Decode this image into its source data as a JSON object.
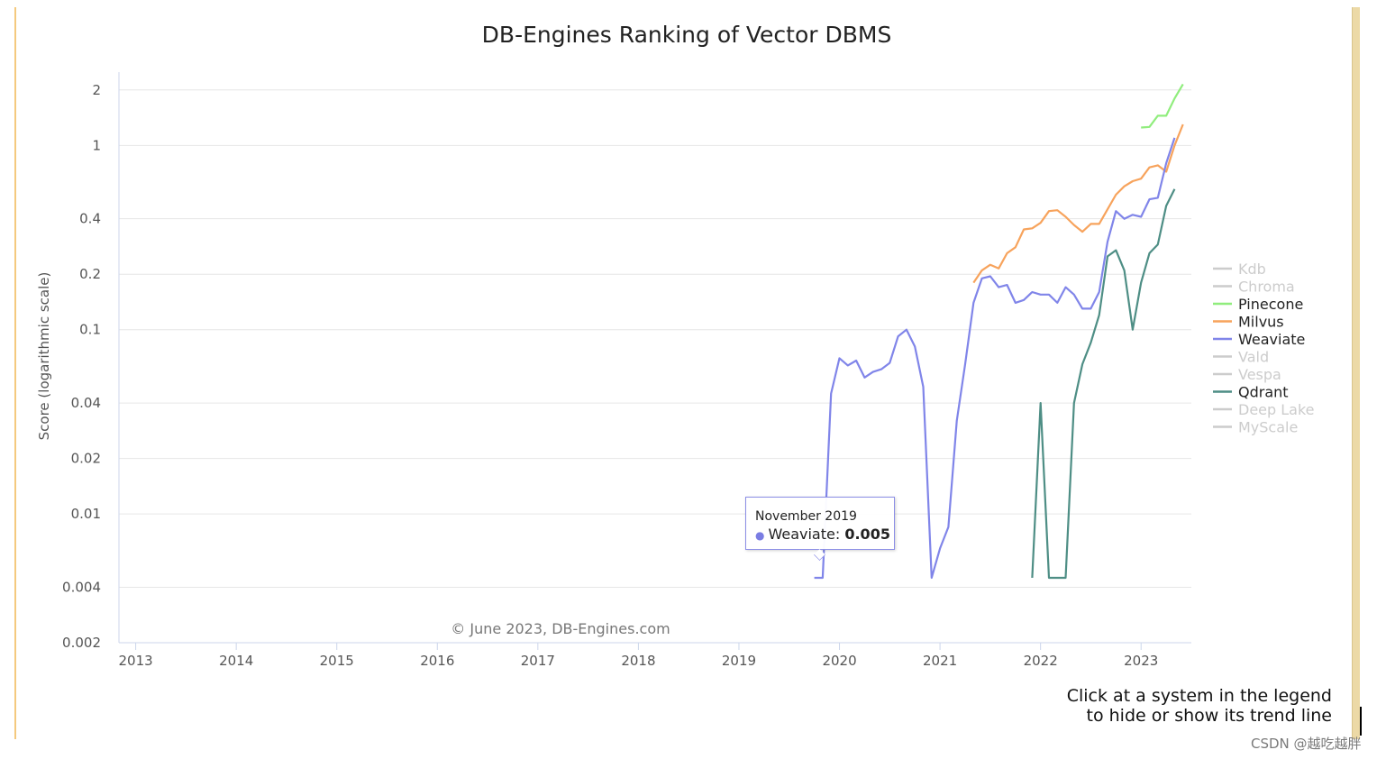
{
  "chart_data": {
    "type": "line",
    "title": "DB-Engines Ranking of Vector DBMS",
    "ylabel": "Score (logarithmic scale)",
    "xlabel": "",
    "yscale": "log",
    "ylim": [
      0.002,
      2.5
    ],
    "xlim": [
      "2012-11",
      "2023-07"
    ],
    "y_ticks": [
      {
        "value": 2,
        "label": "2"
      },
      {
        "value": 1,
        "label": "1"
      },
      {
        "value": 0.4,
        "label": "0.4"
      },
      {
        "value": 0.2,
        "label": "0.2"
      },
      {
        "value": 0.1,
        "label": "0.1"
      },
      {
        "value": 0.04,
        "label": "0.04"
      },
      {
        "value": 0.02,
        "label": "0.02"
      },
      {
        "value": 0.01,
        "label": "0.01"
      },
      {
        "value": 0.004,
        "label": "0.004"
      },
      {
        "value": 0.002,
        "label": "0.002"
      }
    ],
    "x_ticks": [
      {
        "date": "2013-01",
        "label": "2013"
      },
      {
        "date": "2014-01",
        "label": "2014"
      },
      {
        "date": "2015-01",
        "label": "2015"
      },
      {
        "date": "2016-01",
        "label": "2016"
      },
      {
        "date": "2017-01",
        "label": "2017"
      },
      {
        "date": "2018-01",
        "label": "2018"
      },
      {
        "date": "2019-01",
        "label": "2019"
      },
      {
        "date": "2020-01",
        "label": "2020"
      },
      {
        "date": "2021-01",
        "label": "2021"
      },
      {
        "date": "2022-01",
        "label": "2022"
      },
      {
        "date": "2023-01",
        "label": "2023"
      }
    ],
    "grid": true,
    "legend_position": "right",
    "credits": "© June 2023, DB-Engines.com",
    "series": [
      {
        "name": "Kdb",
        "color": "#cccccc",
        "visible": false,
        "points": []
      },
      {
        "name": "Chroma",
        "color": "#cccccc",
        "visible": false,
        "points": []
      },
      {
        "name": "Pinecone",
        "color": "#90ed7d",
        "visible": true,
        "points": [
          [
            "2023-01",
            1.25
          ],
          [
            "2023-02",
            1.26
          ],
          [
            "2023-03",
            1.45
          ],
          [
            "2023-04",
            1.45
          ],
          [
            "2023-05",
            1.8
          ],
          [
            "2023-06",
            2.15
          ]
        ]
      },
      {
        "name": "Milvus",
        "color": "#f7a35c",
        "visible": true,
        "points": [
          [
            "2021-05",
            0.18
          ],
          [
            "2021-06",
            0.21
          ],
          [
            "2021-07",
            0.225
          ],
          [
            "2021-08",
            0.215
          ],
          [
            "2021-09",
            0.26
          ],
          [
            "2021-10",
            0.28
          ],
          [
            "2021-11",
            0.35
          ],
          [
            "2021-12",
            0.355
          ],
          [
            "2022-01",
            0.38
          ],
          [
            "2022-02",
            0.44
          ],
          [
            "2022-03",
            0.445
          ],
          [
            "2022-04",
            0.41
          ],
          [
            "2022-05",
            0.37
          ],
          [
            "2022-06",
            0.34
          ],
          [
            "2022-07",
            0.375
          ],
          [
            "2022-08",
            0.375
          ],
          [
            "2022-09",
            0.45
          ],
          [
            "2022-10",
            0.54
          ],
          [
            "2022-11",
            0.6
          ],
          [
            "2022-12",
            0.64
          ],
          [
            "2023-01",
            0.66
          ],
          [
            "2023-02",
            0.76
          ],
          [
            "2023-03",
            0.78
          ],
          [
            "2023-04",
            0.72
          ],
          [
            "2023-05",
            1.0
          ],
          [
            "2023-06",
            1.3
          ]
        ]
      },
      {
        "name": "Weaviate",
        "color": "#8085e9",
        "visible": true,
        "points": [
          [
            "2019-10",
            0.0045
          ],
          [
            "2019-11",
            0.0045
          ],
          [
            "2019-12",
            0.045
          ],
          [
            "2020-01",
            0.07
          ],
          [
            "2020-02",
            0.064
          ],
          [
            "2020-03",
            0.068
          ],
          [
            "2020-04",
            0.055
          ],
          [
            "2020-05",
            0.059
          ],
          [
            "2020-06",
            0.061
          ],
          [
            "2020-07",
            0.066
          ],
          [
            "2020-08",
            0.092
          ],
          [
            "2020-09",
            0.1
          ],
          [
            "2020-10",
            0.081
          ],
          [
            "2020-11",
            0.049
          ],
          [
            "2020-12",
            0.0045
          ],
          [
            "2021-01",
            0.0065
          ],
          [
            "2021-02",
            0.0085
          ],
          [
            "2021-03",
            0.032
          ],
          [
            "2021-04",
            0.065
          ],
          [
            "2021-05",
            0.14
          ],
          [
            "2021-06",
            0.19
          ],
          [
            "2021-07",
            0.195
          ],
          [
            "2021-08",
            0.17
          ],
          [
            "2021-09",
            0.175
          ],
          [
            "2021-10",
            0.14
          ],
          [
            "2021-11",
            0.145
          ],
          [
            "2021-12",
            0.16
          ],
          [
            "2022-01",
            0.155
          ],
          [
            "2022-02",
            0.155
          ],
          [
            "2022-03",
            0.14
          ],
          [
            "2022-04",
            0.17
          ],
          [
            "2022-05",
            0.155
          ],
          [
            "2022-06",
            0.13
          ],
          [
            "2022-07",
            0.13
          ],
          [
            "2022-08",
            0.16
          ],
          [
            "2022-09",
            0.3
          ],
          [
            "2022-10",
            0.44
          ],
          [
            "2022-11",
            0.4
          ],
          [
            "2022-12",
            0.42
          ],
          [
            "2023-01",
            0.41
          ],
          [
            "2023-02",
            0.51
          ],
          [
            "2023-03",
            0.52
          ],
          [
            "2023-04",
            0.8
          ],
          [
            "2023-05",
            1.1
          ]
        ]
      },
      {
        "name": "Vald",
        "color": "#cccccc",
        "visible": false,
        "points": []
      },
      {
        "name": "Vespa",
        "color": "#cccccc",
        "visible": false,
        "points": []
      },
      {
        "name": "Qdrant",
        "color": "#4e8e85",
        "visible": true,
        "points": [
          [
            "2021-12",
            0.0045
          ],
          [
            "2022-01",
            0.04
          ],
          [
            "2022-02",
            0.0045
          ],
          [
            "2022-03",
            0.0045
          ],
          [
            "2022-04",
            0.0045
          ],
          [
            "2022-05",
            0.04
          ],
          [
            "2022-06",
            0.065
          ],
          [
            "2022-07",
            0.085
          ],
          [
            "2022-08",
            0.12
          ],
          [
            "2022-09",
            0.25
          ],
          [
            "2022-10",
            0.27
          ],
          [
            "2022-11",
            0.21
          ],
          [
            "2022-12",
            0.1
          ],
          [
            "2023-01",
            0.18
          ],
          [
            "2023-02",
            0.26
          ],
          [
            "2023-03",
            0.29
          ],
          [
            "2023-04",
            0.47
          ],
          [
            "2023-05",
            0.58
          ]
        ]
      },
      {
        "name": "Deep Lake",
        "color": "#cccccc",
        "visible": false,
        "points": []
      },
      {
        "name": "MyScale",
        "color": "#cccccc",
        "visible": false,
        "points": []
      }
    ],
    "tooltip": {
      "date": "November 2019",
      "series": "Weaviate",
      "value": "0.005"
    }
  },
  "hint": {
    "line1": "Click at a system in the legend",
    "line2": "to hide or show its trend line"
  },
  "watermark": "CSDN @越吃越胖"
}
